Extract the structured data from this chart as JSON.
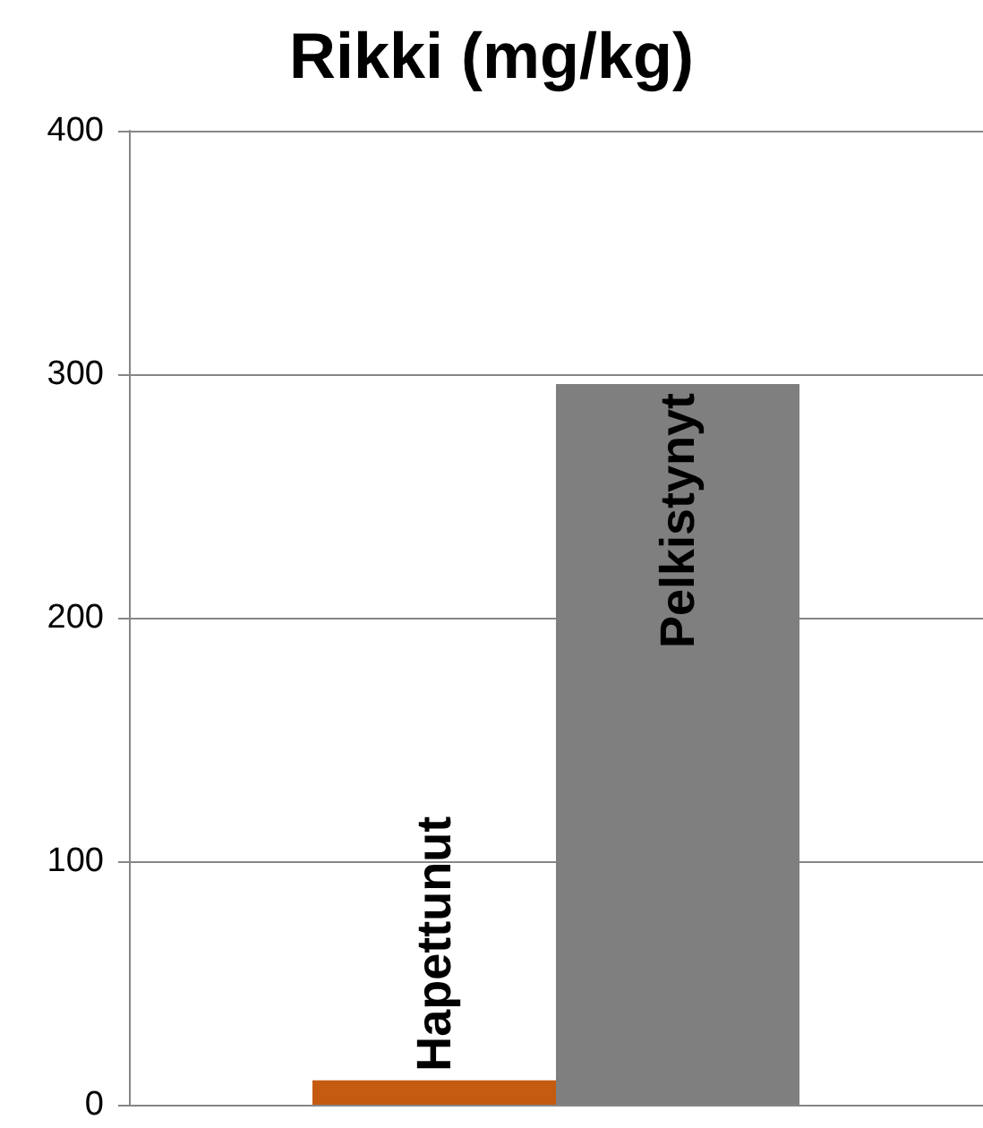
{
  "chart_data": {
    "type": "bar",
    "title": "Rikki (mg/kg)",
    "categories": [
      null
    ],
    "series": [
      {
        "name": "Hapettunut",
        "color": "#c55a11",
        "values": [
          10
        ]
      },
      {
        "name": "Pelkistynyt",
        "color": "#7f7f7f",
        "values": [
          296
        ]
      }
    ],
    "ylim": [
      0,
      400
    ],
    "yticks": [
      0,
      100,
      200,
      300,
      400
    ],
    "grid": "y",
    "legend": false
  }
}
